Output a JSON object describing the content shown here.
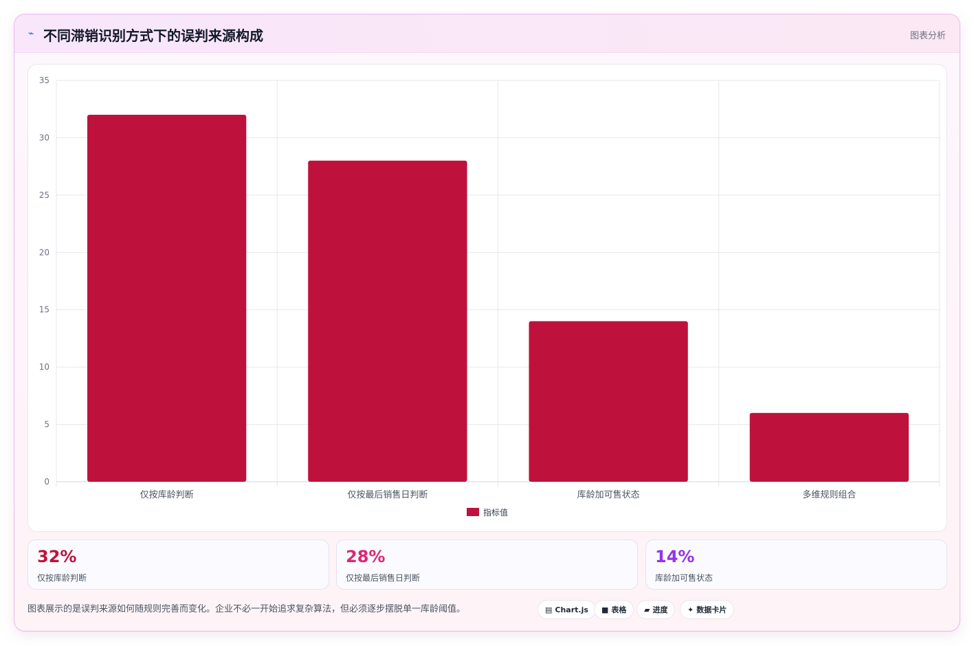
{
  "header": {
    "icon": "trend-line-icon",
    "title": "不同滞销识别方式下的误判来源构成",
    "right_label": "图表分析"
  },
  "chart_data": {
    "type": "bar",
    "categories": [
      "仅按库龄判断",
      "仅按最后销售日判断",
      "库龄加可售状态",
      "多维规则组合"
    ],
    "series": [
      {
        "name": "指标值",
        "values": [
          32,
          28,
          14,
          6
        ],
        "color": "#be123c"
      }
    ],
    "title": "",
    "xlabel": "",
    "ylabel": "",
    "ylim": [
      0,
      35
    ],
    "yticks": [
      0,
      5,
      10,
      15,
      20,
      25,
      30,
      35
    ],
    "grid": true,
    "legend": "bottom"
  },
  "kpis": [
    {
      "value": "32%",
      "label": "仅按库龄判断",
      "color": "#be123c"
    },
    {
      "value": "28%",
      "label": "仅按最后销售日判断",
      "color": "#db2777"
    },
    {
      "value": "14%",
      "label": "库龄加可售状态",
      "color": "#9333ea"
    }
  ],
  "footer": {
    "note": "图表展示的是误判来源如何随规则完善而变化。企业不必一开始追求复杂算法，但必须逐步摆脱单一库龄阈值。",
    "pills": [
      {
        "icon": "chart-icon",
        "glyph": "▤",
        "label": "Chart.js"
      },
      {
        "icon": "table-icon",
        "glyph": "■",
        "label": "表格"
      },
      {
        "icon": "progress-icon",
        "glyph": "▰",
        "label": "进度"
      },
      {
        "icon": "sparkle-icon",
        "glyph": "✦",
        "label": "数据卡片"
      }
    ]
  }
}
